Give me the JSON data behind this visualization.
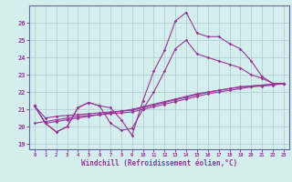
{
  "xlabel": "Windchill (Refroidissement éolien,°C)",
  "bg_color": "#d4eeee",
  "grid_color": "#aacccc",
  "line_color": "#993399",
  "spine_color": "#666699",
  "xlim": [
    -0.5,
    23.5
  ],
  "ylim": [
    18.7,
    27.0
  ],
  "yticks": [
    19,
    20,
    21,
    22,
    23,
    24,
    25,
    26
  ],
  "xticks": [
    0,
    1,
    2,
    3,
    4,
    5,
    6,
    7,
    8,
    9,
    10,
    11,
    12,
    13,
    14,
    15,
    16,
    17,
    18,
    19,
    20,
    21,
    22,
    23
  ],
  "lines": [
    [
      21.2,
      20.2,
      19.7,
      20.0,
      21.1,
      21.4,
      21.2,
      21.1,
      20.4,
      19.5,
      21.5,
      23.2,
      24.4,
      26.1,
      26.6,
      25.4,
      25.2,
      25.2,
      24.8,
      24.5,
      23.8,
      22.9,
      22.5,
      22.5
    ],
    [
      21.2,
      20.2,
      19.7,
      20.0,
      21.1,
      21.4,
      21.2,
      20.2,
      19.8,
      19.9,
      21.0,
      22.0,
      23.2,
      24.5,
      25.0,
      24.2,
      24.0,
      23.8,
      23.6,
      23.4,
      23.0,
      22.8,
      22.5,
      22.5
    ],
    [
      21.2,
      20.2,
      20.3,
      20.4,
      20.5,
      20.6,
      20.7,
      20.8,
      20.9,
      21.0,
      21.15,
      21.3,
      21.45,
      21.6,
      21.75,
      21.9,
      22.0,
      22.1,
      22.2,
      22.3,
      22.35,
      22.4,
      22.45,
      22.5
    ],
    [
      21.2,
      20.5,
      20.6,
      20.65,
      20.7,
      20.75,
      20.8,
      20.85,
      20.9,
      20.95,
      21.1,
      21.25,
      21.4,
      21.55,
      21.7,
      21.85,
      22.0,
      22.1,
      22.2,
      22.3,
      22.35,
      22.4,
      22.45,
      22.5
    ],
    [
      20.2,
      20.3,
      20.4,
      20.5,
      20.6,
      20.65,
      20.7,
      20.75,
      20.8,
      20.85,
      21.0,
      21.15,
      21.3,
      21.45,
      21.6,
      21.75,
      21.9,
      22.0,
      22.1,
      22.2,
      22.3,
      22.35,
      22.4,
      22.5
    ]
  ]
}
